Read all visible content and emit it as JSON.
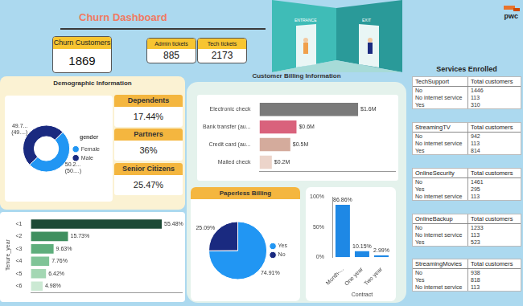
{
  "title": "Churn Dashboard",
  "logo": "pwc",
  "illustration": {
    "labels": [
      "ENTRANCE",
      "EXIT"
    ]
  },
  "kpis": [
    {
      "title": "Churn Customers",
      "value": 1869
    },
    {
      "title": "Admin tickets",
      "value": 885
    },
    {
      "title": "Tech tickets",
      "value": 2173
    }
  ],
  "demographics": {
    "title": "Demographic Information",
    "cards": [
      {
        "title": "Dependents",
        "value": "17.44%"
      },
      {
        "title": "Partners",
        "value": "36%"
      },
      {
        "title": "Senior Citizens",
        "value": "25.47%"
      }
    ]
  },
  "billing_title": "Customer Billing Information",
  "services": {
    "title": "Services Enrolled",
    "tables": [
      {
        "header": [
          "TechSupport",
          "Total customers"
        ],
        "rows": [
          [
            "No",
            1446
          ],
          [
            "No internet service",
            113
          ],
          [
            "Yes",
            310
          ]
        ]
      },
      {
        "header": [
          "StreamingTV",
          "Total customers"
        ],
        "rows": [
          [
            "No",
            942
          ],
          [
            "No internet service",
            113
          ],
          [
            "Yes",
            814
          ]
        ]
      },
      {
        "header": [
          "OnlineSecurity",
          "Total customers"
        ],
        "rows": [
          [
            "No",
            1461
          ],
          [
            "Yes",
            295
          ],
          [
            "No internet service",
            113
          ]
        ]
      },
      {
        "header": [
          "OnlineBackup",
          "Total customers"
        ],
        "rows": [
          [
            "No",
            1233
          ],
          [
            "No internet service",
            113
          ],
          [
            "Yes",
            523
          ]
        ]
      },
      {
        "header": [
          "StreamingMovies",
          "Total customers"
        ],
        "rows": [
          [
            "No",
            938
          ],
          [
            "Yes",
            818
          ],
          [
            "No internet service",
            113
          ]
        ]
      }
    ]
  },
  "chart_data": [
    {
      "type": "doughnut",
      "legend_title": "gender",
      "categories": [
        "Female",
        "Male"
      ],
      "values": [
        50.2,
        49.7
      ],
      "value_labels": [
        [
          "50.2...",
          "(50....)"
        ],
        [
          "49.7...",
          "(49....)"
        ]
      ],
      "colors": [
        "#2196f3",
        "#1a2a80"
      ],
      "legend": "right",
      "data_labels": true
    },
    {
      "type": "bar",
      "orientation": "horizontal",
      "y_label": "Tenure_year",
      "categories": [
        "<1",
        "<2",
        "<3",
        "<4",
        "<5",
        "<6"
      ],
      "values": [
        55.48,
        15.73,
        9.63,
        7.76,
        6.42,
        4.98
      ],
      "value_labels": [
        "55.48%",
        "15.73%",
        "9.63%",
        "7.76%",
        "6.42%",
        "4.98%"
      ],
      "colors": [
        "#1d4a36",
        "#3f8f5f",
        "#5eae7c",
        "#7fc497",
        "#a3d7b3",
        "#cbe9d3"
      ],
      "xlim": [
        0,
        64
      ],
      "xticks": [],
      "tick_labels": "y",
      "grid": false,
      "data_labels": true
    },
    {
      "type": "bar",
      "orientation": "horizontal",
      "categories": [
        "Electronic check",
        "Bank transfer (au...",
        "Credit card (au...",
        "Mailed check"
      ],
      "values": [
        1600000,
        600000,
        500000,
        200000
      ],
      "value_labels": [
        "$1.6M",
        "$0.6M",
        "$0.5M",
        "$0.2M"
      ],
      "colors": [
        "#7a7a7a",
        "#d9627c",
        "#d4ab9c",
        "#ecd4ca"
      ],
      "xlim": [
        0,
        2200000
      ],
      "xticks": [],
      "tick_labels": "y",
      "grid": false,
      "data_labels": true
    },
    {
      "type": "pie",
      "title": "Paperless Billing",
      "categories": [
        "Yes",
        "No"
      ],
      "values": [
        74.91,
        25.09
      ],
      "value_labels": [
        "74.91%",
        "25.09%"
      ],
      "colors": [
        "#2196f3",
        "#1a2a80"
      ],
      "legend": "right",
      "data_labels": true
    },
    {
      "type": "bar",
      "x_label": "Contract",
      "categories": [
        "Month-...",
        "One year",
        "Two year"
      ],
      "values": [
        86.86,
        10.15,
        2.99
      ],
      "value_labels": [
        "86.86%",
        "10.15%",
        "2.99%"
      ],
      "color": "#1e88e5",
      "ylim": [
        0,
        100
      ],
      "yticks": [
        {
          "value": 0,
          "label": "0%"
        },
        {
          "value": 50,
          "label": "50%"
        },
        {
          "value": 100,
          "label": "100%"
        }
      ],
      "grid": false,
      "data_labels": true
    }
  ]
}
